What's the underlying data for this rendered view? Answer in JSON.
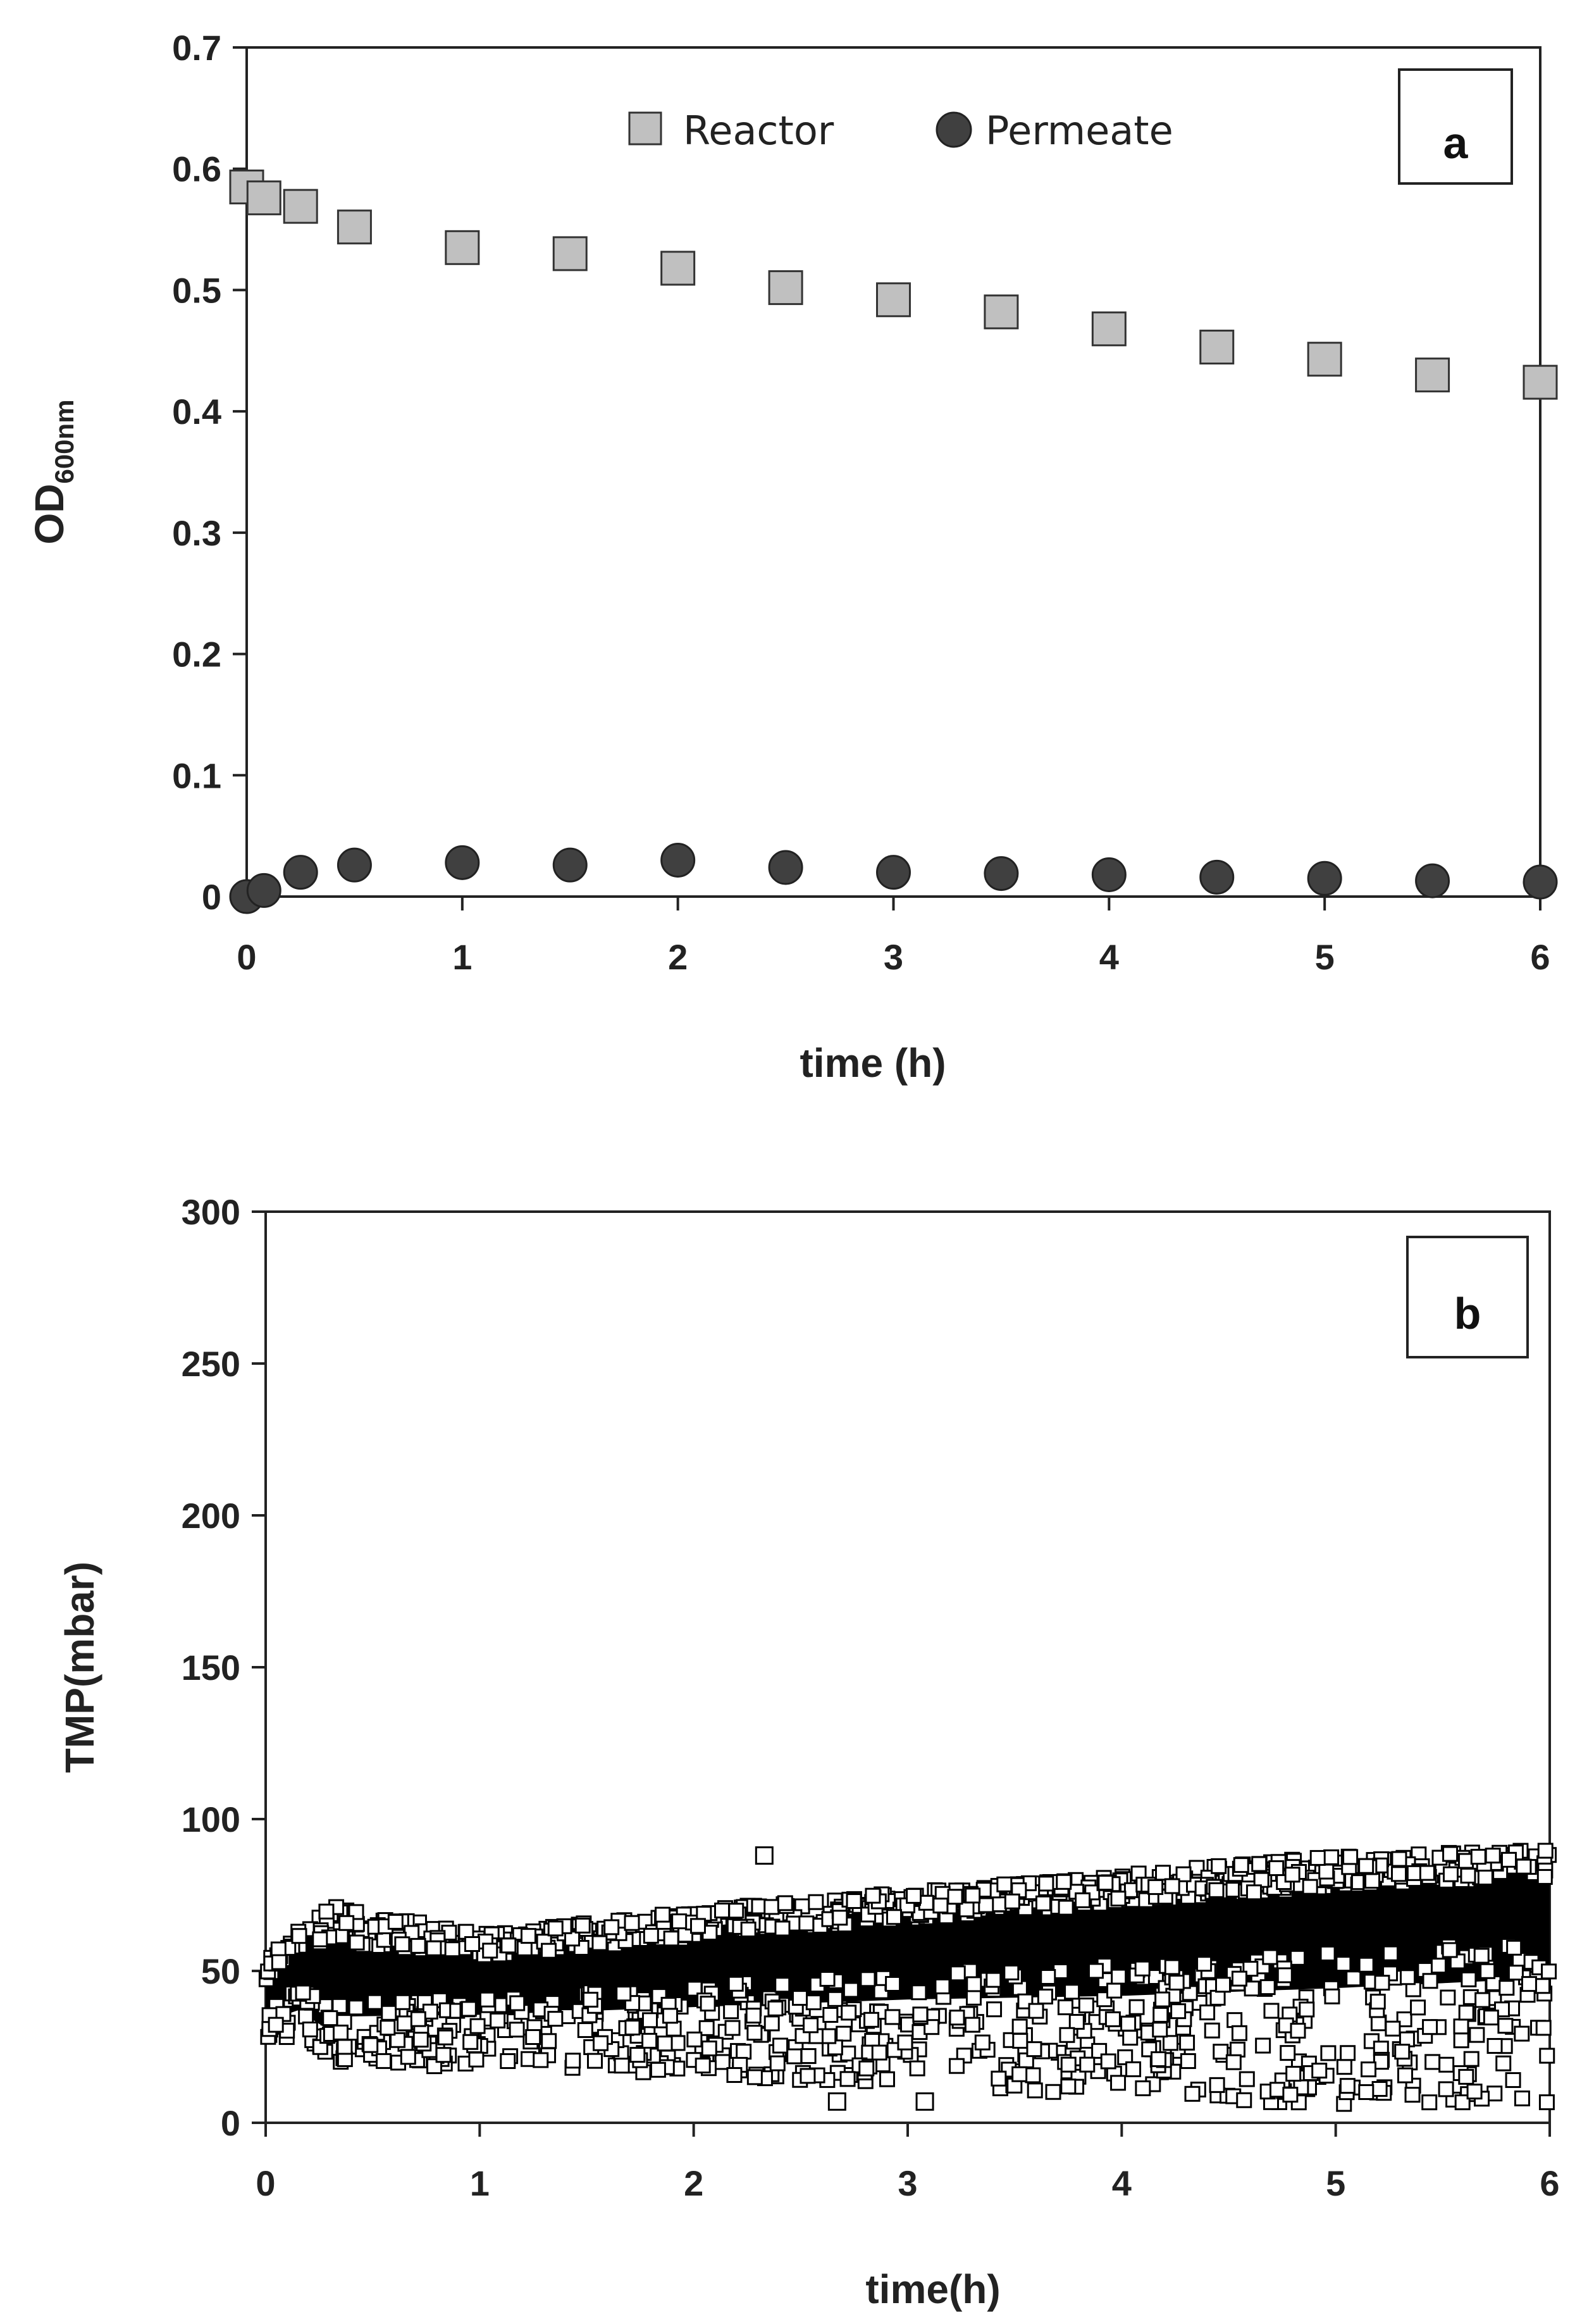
{
  "chart_data": [
    {
      "type": "scatter",
      "panel_label": "a",
      "xlabel": "time (h)",
      "ylabel_main": "OD",
      "ylabel_sub": "600nm",
      "xlim": [
        0,
        6
      ],
      "ylim": [
        0,
        0.7
      ],
      "xticks": [
        "0",
        "1",
        "2",
        "3",
        "4",
        "5",
        "6"
      ],
      "yticks": [
        "0",
        "0.1",
        "0.2",
        "0.3",
        "0.4",
        "0.5",
        "0.6",
        "0.7"
      ],
      "grid": false,
      "legend_position": "top-center",
      "series": [
        {
          "name": "Reactor",
          "marker": "square",
          "color": "#c0c0c0",
          "x": [
            0,
            0.08,
            0.25,
            0.5,
            1,
            1.5,
            2,
            2.5,
            3,
            3.5,
            4,
            4.5,
            5,
            5.5,
            6
          ],
          "y": [
            0.585,
            0.576,
            0.569,
            0.552,
            0.535,
            0.53,
            0.518,
            0.502,
            0.492,
            0.482,
            0.468,
            0.453,
            0.443,
            0.43,
            0.424
          ]
        },
        {
          "name": "Permeate",
          "marker": "circle",
          "color": "#404040",
          "x": [
            0,
            0.08,
            0.25,
            0.5,
            1,
            1.5,
            2,
            2.5,
            3,
            3.5,
            4,
            4.5,
            5,
            5.5,
            6
          ],
          "y": [
            0.0,
            0.005,
            0.02,
            0.026,
            0.028,
            0.026,
            0.03,
            0.024,
            0.02,
            0.019,
            0.018,
            0.016,
            0.015,
            0.013,
            0.012
          ]
        }
      ]
    },
    {
      "type": "scatter",
      "panel_label": "b",
      "xlabel": "time(h)",
      "ylabel": "TMP(mbar)",
      "xlim": [
        0,
        6
      ],
      "ylim": [
        0,
        300
      ],
      "xticks": [
        "0",
        "1",
        "2",
        "3",
        "4",
        "5",
        "6"
      ],
      "yticks": [
        "0",
        "50",
        "100",
        "150",
        "200",
        "250",
        "300"
      ],
      "grid": false,
      "series": [
        {
          "marker": "open-square",
          "color": "#000000",
          "description_of_band": "dense scatter of TMP readings",
          "band_center": [
            [
              0,
              40
            ],
            [
              0.15,
              48
            ],
            [
              0.3,
              43
            ],
            [
              1,
              45
            ],
            [
              2,
              50
            ],
            [
              3,
              56
            ],
            [
              4,
              60
            ],
            [
              5,
              65
            ],
            [
              6,
              70
            ]
          ],
          "band_upper": [
            [
              0,
              52
            ],
            [
              0.15,
              66
            ],
            [
              0.3,
              72
            ],
            [
              1,
              62
            ],
            [
              2,
              70
            ],
            [
              3,
              76
            ],
            [
              4,
              82
            ],
            [
              5,
              88
            ],
            [
              6,
              90
            ]
          ],
          "band_lower": [
            [
              0,
              28
            ],
            [
              0.15,
              28
            ],
            [
              0.3,
              20
            ],
            [
              1,
              18
            ],
            [
              2,
              16
            ],
            [
              3,
              12
            ],
            [
              4,
              8
            ],
            [
              5,
              6
            ],
            [
              6,
              6
            ]
          ],
          "outliers": [
            [
              2.33,
              88
            ],
            [
              2.67,
              7
            ],
            [
              3.08,
              7
            ]
          ]
        }
      ]
    }
  ]
}
